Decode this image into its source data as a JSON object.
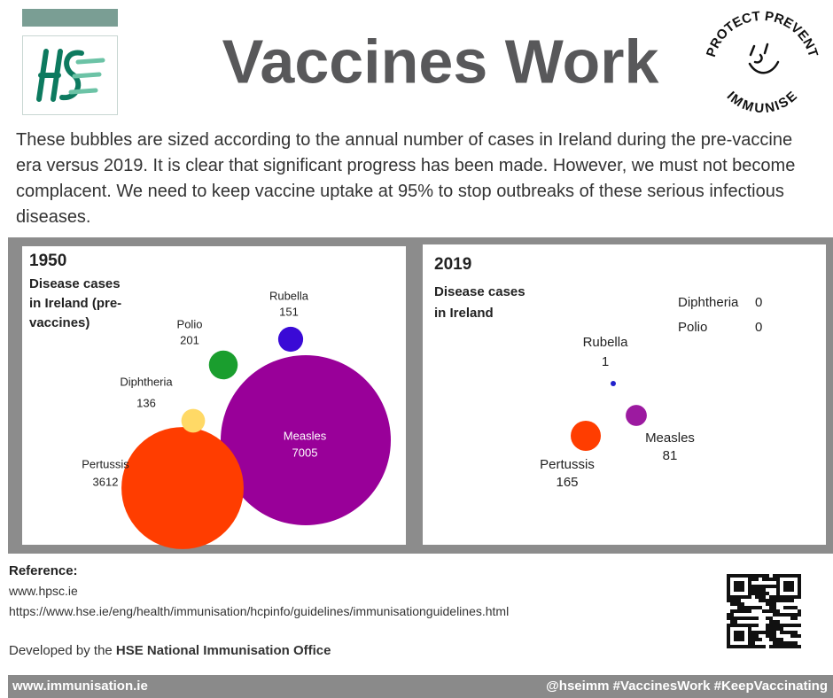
{
  "header": {
    "title": "Vaccines Work",
    "badge_top": "PROTECT PREVENT",
    "badge_bottom": "IMMUNISE"
  },
  "intro": "These bubbles are sized according to the annual number of cases in Ireland during the pre-vaccine era versus 2019. It is clear that significant progress has been made. However, we must not become complacent. We need to keep vaccine uptake at 95% to stop outbreaks of these serious infectious diseases.",
  "chart_data": [
    {
      "type": "bubble",
      "title": "1950",
      "subtitle": "Disease cases in Ireland (pre-vaccines)",
      "categories": [
        "Measles",
        "Pertussis",
        "Diphtheria",
        "Polio",
        "Rubella"
      ],
      "values": [
        7005,
        3612,
        136,
        201,
        151
      ],
      "colors": [
        "#990099",
        "#ff3d00",
        "#ffd966",
        "#1a9e2e",
        "#3a0ad6"
      ]
    },
    {
      "type": "bubble",
      "title": "2019",
      "subtitle": "Disease cases in Ireland",
      "categories": [
        "Measles",
        "Pertussis",
        "Rubella",
        "Diphtheria",
        "Polio"
      ],
      "values": [
        81,
        165,
        1,
        0,
        0
      ],
      "colors": [
        "#9c1aa0",
        "#ff3d00",
        "#2222cc",
        "#000000",
        "#000000"
      ]
    }
  ],
  "reference": {
    "heading": "Reference:",
    "links": [
      "www.hpsc.ie",
      "https://www.hse.ie/eng/health/immunisation/hcpinfo/guidelines/immunisationguidelines.html"
    ],
    "developed_prefix": "Developed by the",
    "developed_by": "HSE National Immunisation Office"
  },
  "footer": {
    "left": "www.immunisation.ie",
    "right": "@hseimm #VaccinesWork #KeepVaccinating"
  }
}
